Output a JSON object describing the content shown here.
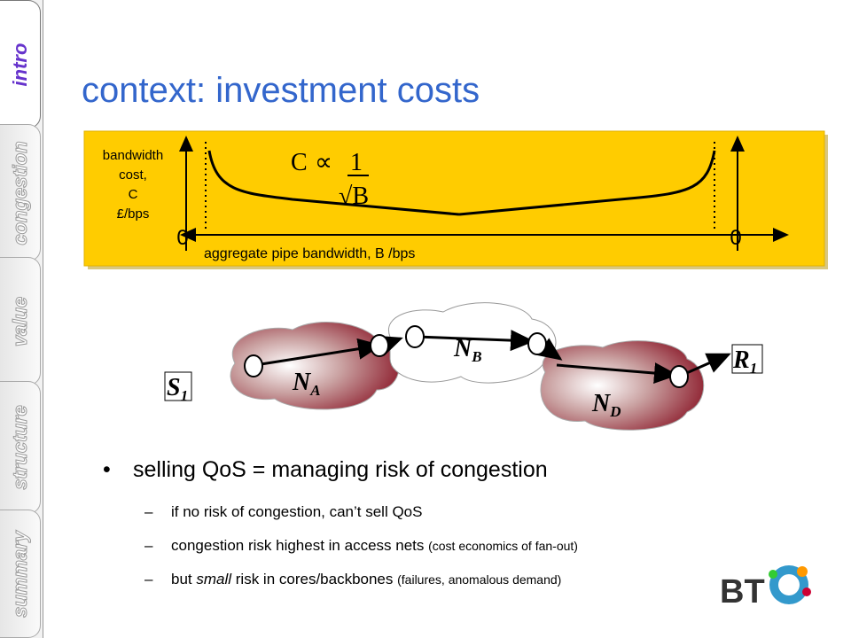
{
  "sidebar": {
    "tabs": [
      "intro",
      "congestion",
      "value",
      "structure",
      "summary"
    ],
    "active": 0
  },
  "header": {
    "title": "context: investment costs"
  },
  "graph": {
    "y_label": [
      "bandwidth",
      "cost,",
      "C",
      "£/bps"
    ],
    "formula": {
      "lhs": "C",
      "prop": "∝",
      "num": "1",
      "den": "√B"
    },
    "x_label": "aggregate pipe bandwidth, B /bps",
    "origins": [
      "0",
      "0"
    ]
  },
  "network": {
    "nodes": [
      {
        "base": "S",
        "sub": "1"
      },
      {
        "base": "N",
        "sub": "A"
      },
      {
        "base": "N",
        "sub": "B"
      },
      {
        "base": "N",
        "sub": "D"
      },
      {
        "base": "R",
        "sub": "1"
      }
    ]
  },
  "bullets": {
    "main": "selling QoS = managing risk of congestion",
    "subs": [
      {
        "text": "if no risk of congestion, can’t sell QoS"
      },
      {
        "text": "congestion risk highest in access nets ",
        "note": "(cost economics of fan-out)"
      },
      {
        "text": "but ",
        "em": "small",
        "rest": " risk in cores/backbones ",
        "note": "(failures, anomalous demand)"
      }
    ],
    "dash": "–"
  },
  "logo": "BT"
}
